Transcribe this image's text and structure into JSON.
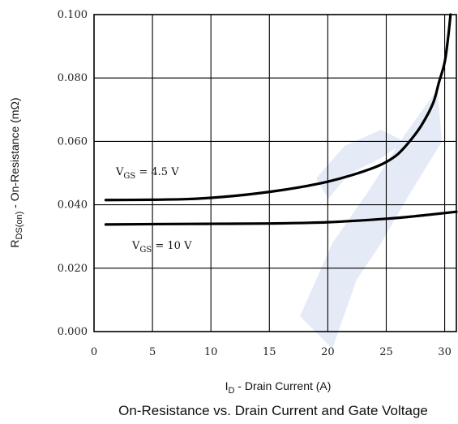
{
  "chart_data": {
    "type": "line",
    "title": "On-Resistance vs. Drain Current and Gate Voltage",
    "xlabel": {
      "main": "I",
      "sub": "D",
      "rest": " - Drain Current (A)"
    },
    "ylabel": {
      "main": "R",
      "sub": "DS(on)",
      "rest": " - On-Resistance (mΩ)"
    },
    "xlim": [
      0,
      31
    ],
    "ylim": [
      0,
      0.1
    ],
    "xticks": [
      0,
      5,
      10,
      15,
      20,
      25,
      30
    ],
    "xtick_labels": [
      "0",
      "5",
      "10",
      "15",
      "20",
      "25",
      "30"
    ],
    "yticks": [
      0,
      0.02,
      0.04,
      0.06,
      0.08,
      0.1
    ],
    "ytick_labels": [
      "0.000",
      "0.020",
      "0.040",
      "0.060",
      "0.080",
      "0.100"
    ],
    "grid": true,
    "series": [
      {
        "label": {
          "main": "V",
          "sub": "GS",
          "rest": " = 4.5 V"
        },
        "x": [
          1,
          5,
          8,
          10,
          12,
          14,
          16,
          18,
          20,
          22,
          24,
          25,
          26,
          27,
          28,
          29,
          29.5,
          30,
          30.3,
          30.5
        ],
        "y": [
          0.0415,
          0.0416,
          0.0418,
          0.0422,
          0.0428,
          0.0436,
          0.0446,
          0.0458,
          0.0473,
          0.0493,
          0.0518,
          0.0535,
          0.056,
          0.06,
          0.065,
          0.072,
          0.0785,
          0.085,
          0.093,
          0.1
        ]
      },
      {
        "label": {
          "main": "V",
          "sub": "GS",
          "rest": " = 10 V"
        },
        "x": [
          1,
          5,
          10,
          15,
          20,
          25,
          28,
          31
        ],
        "y": [
          0.0338,
          0.0339,
          0.034,
          0.0341,
          0.0345,
          0.0356,
          0.0366,
          0.0378
        ]
      }
    ]
  }
}
